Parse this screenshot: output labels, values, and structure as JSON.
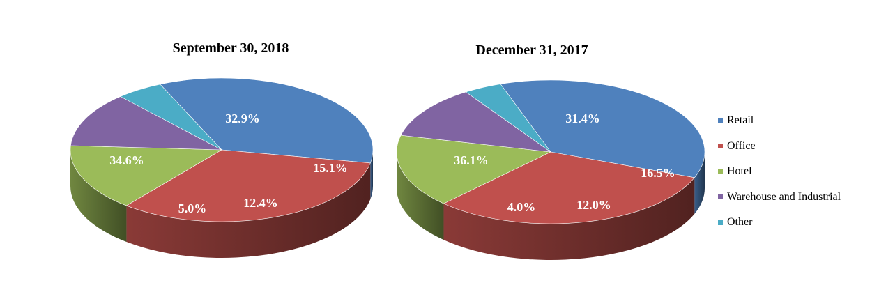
{
  "chart_data": [
    {
      "type": "pie",
      "title": "September 30, 2018",
      "slices": [
        {
          "label": "Retail",
          "value": 34.6,
          "text": "34.6%"
        },
        {
          "label": "Office",
          "value": 32.9,
          "text": "32.9%"
        },
        {
          "label": "Hotel",
          "value": 15.1,
          "text": "15.1%"
        },
        {
          "label": "Warehouse and Industrial",
          "value": 12.4,
          "text": "12.4%"
        },
        {
          "label": "Other",
          "value": 5.0,
          "text": "5.0%"
        }
      ]
    },
    {
      "type": "pie",
      "title": "December 31, 2017",
      "slices": [
        {
          "label": "Retail",
          "value": 36.1,
          "text": "36.1%"
        },
        {
          "label": "Office",
          "value": 31.4,
          "text": "31.4%"
        },
        {
          "label": "Hotel",
          "value": 16.5,
          "text": "16.5%"
        },
        {
          "label": "Warehouse and Industrial",
          "value": 12.0,
          "text": "12.0%"
        },
        {
          "label": "Other",
          "value": 4.0,
          "text": "4.0%"
        }
      ]
    }
  ],
  "legend": [
    {
      "label": "Retail",
      "color": "#4F81BD"
    },
    {
      "label": "Office",
      "color": "#C0504D"
    },
    {
      "label": "Hotel",
      "color": "#9BBB59"
    },
    {
      "label": "Warehouse and Industrial",
      "color": "#8064A2"
    },
    {
      "label": "Other",
      "color": "#4BACC6"
    }
  ],
  "legend_position": "right",
  "style": "3d-pie"
}
